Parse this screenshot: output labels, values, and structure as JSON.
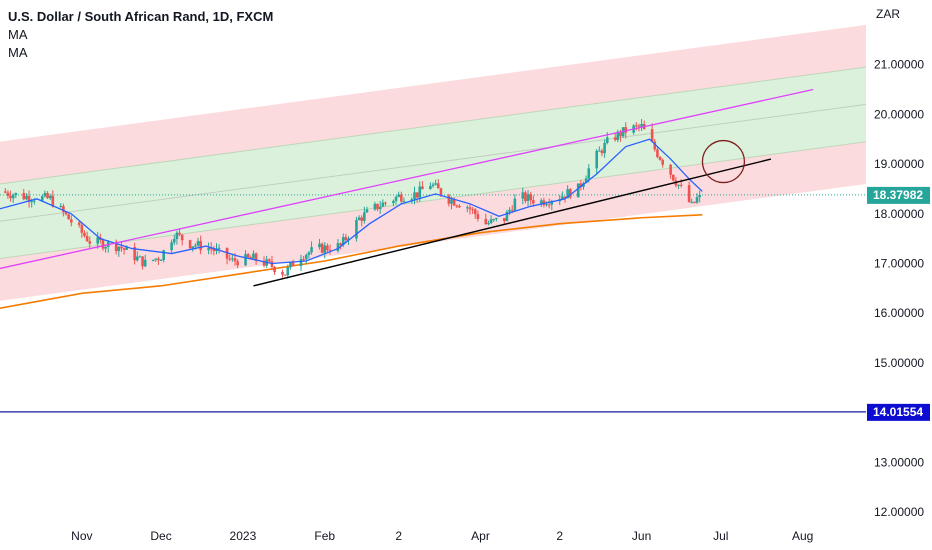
{
  "legend": {
    "title": "U.S. Dollar / South African Rand, 1D, FXCM",
    "indicator_1": "MA",
    "indicator_2": "MA"
  },
  "colors": {
    "up_candle": "#26a69a",
    "down_candle": "#ef5350",
    "ma_fast": "#2962ff",
    "ma_slow": "#f57c00",
    "channel_line": "#e040fb",
    "trendline": "#000000",
    "horizontal_level": "#1a1aa3",
    "last_price_badge": "#26a69a",
    "level_badge": "#0d0dd1",
    "circle": "#7b1f1f",
    "outer_band_fill": "#fbd5d8",
    "inner_band_fill": "#d6efd6"
  },
  "chart_data": {
    "type": "candlestick",
    "currency_label": "ZAR",
    "ylim": [
      11.8,
      22.3
    ],
    "y_ticks": [
      12,
      13,
      14,
      15,
      16,
      17,
      18,
      19,
      20,
      21
    ],
    "y_tick_labels": [
      "12.00000",
      "13.00000",
      "14.00000",
      "15.00000",
      "16.00000",
      "17.00000",
      "18.00000",
      "19.00000",
      "20.00000",
      "21.00000"
    ],
    "x_domain": [
      "2022-10-01",
      "2023-08-25"
    ],
    "x_ticks": [
      {
        "date": "2022-11-01",
        "label": "Nov"
      },
      {
        "date": "2022-12-01",
        "label": "Dec"
      },
      {
        "date": "2023-01-01",
        "label": "2023"
      },
      {
        "date": "2023-02-01",
        "label": "Feb"
      },
      {
        "date": "2023-03-01",
        "label": "2"
      },
      {
        "date": "2023-04-01",
        "label": "Apr"
      },
      {
        "date": "2023-05-01",
        "label": "2"
      },
      {
        "date": "2023-06-01",
        "label": "Jun"
      },
      {
        "date": "2023-07-01",
        "label": "Jul"
      },
      {
        "date": "2023-08-01",
        "label": "Aug"
      }
    ],
    "last_price": 18.37982,
    "last_price_label": "18.37982",
    "level": 14.01554,
    "level_label": "14.01554",
    "close_path": [
      [
        "2022-10-01",
        18.45
      ],
      [
        "2022-10-10",
        18.35
      ],
      [
        "2022-10-20",
        18.3
      ],
      [
        "2022-10-27",
        17.9
      ],
      [
        "2022-11-04",
        17.45
      ],
      [
        "2022-11-15",
        17.35
      ],
      [
        "2022-11-25",
        17.0
      ],
      [
        "2022-12-01",
        17.15
      ],
      [
        "2022-12-06",
        17.6
      ],
      [
        "2022-12-12",
        17.4
      ],
      [
        "2022-12-20",
        17.3
      ],
      [
        "2022-12-28",
        17.05
      ],
      [
        "2023-01-05",
        17.1
      ],
      [
        "2023-01-12",
        16.95
      ],
      [
        "2023-01-17",
        16.8
      ],
      [
        "2023-01-22",
        17.15
      ],
      [
        "2023-01-30",
        17.3
      ],
      [
        "2023-02-07",
        17.35
      ],
      [
        "2023-02-14",
        17.9
      ],
      [
        "2023-02-21",
        18.15
      ],
      [
        "2023-03-01",
        18.35
      ],
      [
        "2023-03-08",
        18.4
      ],
      [
        "2023-03-13",
        18.6
      ],
      [
        "2023-03-20",
        18.3
      ],
      [
        "2023-03-27",
        18.15
      ],
      [
        "2023-04-03",
        17.8
      ],
      [
        "2023-04-10",
        17.9
      ],
      [
        "2023-04-15",
        18.35
      ],
      [
        "2023-04-24",
        18.25
      ],
      [
        "2023-05-01",
        18.35
      ],
      [
        "2023-05-08",
        18.5
      ],
      [
        "2023-05-14",
        19.1
      ],
      [
        "2023-05-20",
        19.5
      ],
      [
        "2023-05-27",
        19.7
      ],
      [
        "2023-06-01",
        19.75
      ],
      [
        "2023-06-06",
        19.3
      ],
      [
        "2023-06-11",
        18.9
      ],
      [
        "2023-06-16",
        18.5
      ],
      [
        "2023-06-20",
        18.15
      ],
      [
        "2023-06-23",
        18.38
      ]
    ],
    "ma_fast": [
      [
        "2022-10-01",
        18.1
      ],
      [
        "2022-10-15",
        18.3
      ],
      [
        "2022-10-28",
        18.0
      ],
      [
        "2022-11-08",
        17.5
      ],
      [
        "2022-11-20",
        17.3
      ],
      [
        "2022-12-05",
        17.2
      ],
      [
        "2022-12-18",
        17.35
      ],
      [
        "2022-12-30",
        17.15
      ],
      [
        "2023-01-12",
        17.0
      ],
      [
        "2023-01-25",
        17.05
      ],
      [
        "2023-02-06",
        17.3
      ],
      [
        "2023-02-18",
        17.8
      ],
      [
        "2023-03-02",
        18.2
      ],
      [
        "2023-03-15",
        18.4
      ],
      [
        "2023-03-28",
        18.2
      ],
      [
        "2023-04-08",
        17.95
      ],
      [
        "2023-04-20",
        18.15
      ],
      [
        "2023-05-03",
        18.3
      ],
      [
        "2023-05-15",
        18.8
      ],
      [
        "2023-05-26",
        19.35
      ],
      [
        "2023-06-04",
        19.5
      ],
      [
        "2023-06-12",
        19.1
      ],
      [
        "2023-06-19",
        18.7
      ],
      [
        "2023-06-24",
        18.45
      ]
    ],
    "ma_slow": [
      [
        "2022-10-01",
        16.1
      ],
      [
        "2022-11-01",
        16.4
      ],
      [
        "2022-12-01",
        16.55
      ],
      [
        "2023-01-01",
        16.8
      ],
      [
        "2023-02-01",
        17.05
      ],
      [
        "2023-03-01",
        17.35
      ],
      [
        "2023-04-01",
        17.62
      ],
      [
        "2023-05-01",
        17.8
      ],
      [
        "2023-06-01",
        17.92
      ],
      [
        "2023-06-24",
        17.98
      ]
    ],
    "regression_channel": {
      "start": "2022-10-01",
      "end": "2023-08-25",
      "center_start": 17.85,
      "center_end": 20.2,
      "inner_offset": 0.75,
      "outer_offset": 1.6
    },
    "channel_line": {
      "start": [
        "2022-10-01",
        16.9
      ],
      "end": [
        "2023-08-05",
        20.5
      ]
    },
    "trendline": {
      "start": [
        "2023-01-05",
        16.55
      ],
      "end": [
        "2023-07-20",
        19.1
      ]
    },
    "circle_center": [
      "2023-07-02",
      19.05
    ]
  }
}
